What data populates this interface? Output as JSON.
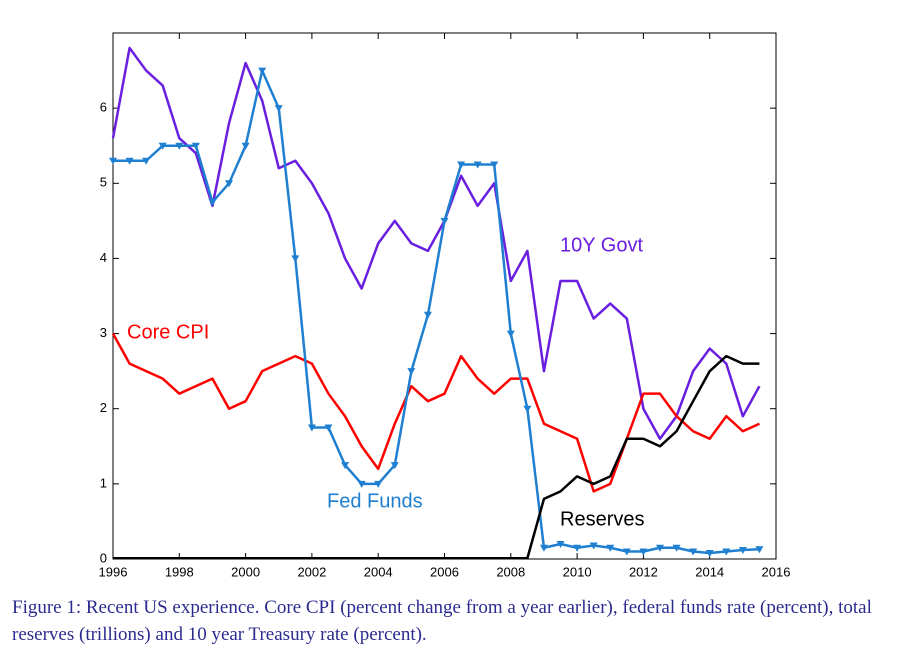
{
  "chart_data": {
    "type": "line",
    "caption": "Figure 1: Recent US experience. Core CPI (percent change from a year earlier), federal funds rate (percent), total reserves (trillions) and 10 year Treasury rate (percent).",
    "x": [
      1996,
      1996.5,
      1997,
      1997.5,
      1998,
      1998.5,
      1999,
      1999.5,
      2000,
      2000.5,
      2001,
      2001.5,
      2002,
      2002.5,
      2003,
      2003.5,
      2004,
      2004.5,
      2005,
      2005.5,
      2006,
      2006.5,
      2007,
      2007.5,
      2008,
      2008.5,
      2009,
      2009.5,
      2010,
      2010.5,
      2011,
      2011.5,
      2012,
      2012.5,
      2013,
      2013.5,
      2014,
      2014.5,
      2015,
      2015.5
    ],
    "series": [
      {
        "name": "10Y Govt",
        "color": "#6a1fe0",
        "values": [
          5.6,
          6.8,
          6.5,
          6.3,
          5.6,
          5.4,
          4.7,
          5.8,
          6.6,
          6.1,
          5.2,
          5.3,
          5.0,
          4.6,
          4.0,
          3.6,
          4.2,
          4.5,
          4.2,
          4.1,
          4.5,
          5.1,
          4.7,
          5.0,
          3.7,
          4.1,
          2.5,
          3.7,
          3.7,
          3.2,
          3.4,
          3.2,
          2.0,
          1.6,
          1.9,
          2.5,
          2.8,
          2.6,
          1.9,
          2.3
        ]
      },
      {
        "name": "Core CPI",
        "color": "#ff0000",
        "values": [
          3.0,
          2.6,
          2.5,
          2.4,
          2.2,
          2.3,
          2.4,
          2.0,
          2.1,
          2.5,
          2.6,
          2.7,
          2.6,
          2.2,
          1.9,
          1.5,
          1.2,
          1.8,
          2.3,
          2.1,
          2.2,
          2.7,
          2.4,
          2.2,
          2.4,
          2.4,
          1.8,
          1.7,
          1.6,
          0.9,
          1.0,
          1.6,
          2.2,
          2.2,
          1.9,
          1.7,
          1.6,
          1.9,
          1.7,
          1.8
        ]
      },
      {
        "name": "Fed Funds",
        "color": "#1f7fd0",
        "markers": "triangle-down",
        "values": [
          5.3,
          5.3,
          5.3,
          5.5,
          5.5,
          5.5,
          4.75,
          5.0,
          5.5,
          6.5,
          6.0,
          4.0,
          1.75,
          1.75,
          1.25,
          1.0,
          1.0,
          1.25,
          2.5,
          3.25,
          4.5,
          5.25,
          5.25,
          5.25,
          3.0,
          2.0,
          0.15,
          0.2,
          0.15,
          0.18,
          0.15,
          0.1,
          0.1,
          0.15,
          0.15,
          0.1,
          0.08,
          0.1,
          0.12,
          0.13
        ]
      },
      {
        "name": "Reserves",
        "color": "#000000",
        "values": [
          0.01,
          0.01,
          0.01,
          0.01,
          0.01,
          0.01,
          0.01,
          0.01,
          0.01,
          0.01,
          0.01,
          0.01,
          0.01,
          0.01,
          0.01,
          0.01,
          0.01,
          0.01,
          0.01,
          0.01,
          0.01,
          0.01,
          0.01,
          0.01,
          0.01,
          0.01,
          0.8,
          0.9,
          1.1,
          1.0,
          1.1,
          1.6,
          1.6,
          1.5,
          1.7,
          2.1,
          2.5,
          2.7,
          2.6,
          2.6
        ]
      }
    ],
    "xlim": [
      1996,
      2016
    ],
    "xticks": [
      1996,
      1998,
      2000,
      2002,
      2004,
      2006,
      2008,
      2010,
      2012,
      2014,
      2016
    ],
    "ylim": [
      0,
      7
    ],
    "yticks": [
      0,
      1,
      2,
      3,
      4,
      5,
      6
    ],
    "grid": false
  }
}
